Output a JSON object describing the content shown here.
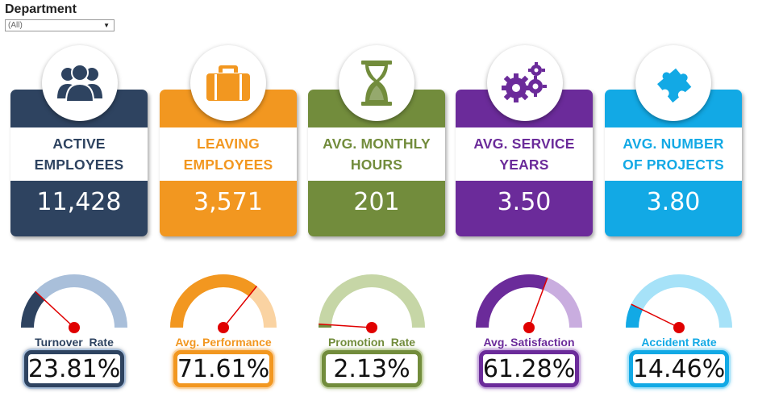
{
  "filter": {
    "title": "Department",
    "selected": "(All)"
  },
  "cards": [
    {
      "line1": "ACTIVE",
      "line2": "EMPLOYEES",
      "value": "11,428",
      "color": "#2e4360",
      "icon": "people-icon"
    },
    {
      "line1": "LEAVING",
      "line2": "EMPLOYEES",
      "value": "3,571",
      "color": "#f29720",
      "icon": "briefcase-icon"
    },
    {
      "line1": "AVG. MONTHLY",
      "line2": "HOURS",
      "value": "201",
      "color": "#728c3c",
      "icon": "hourglass-icon"
    },
    {
      "line1": "AVG. SERVICE",
      "line2": "YEARS",
      "value": "3.50",
      "color": "#6b2b9a",
      "icon": "gears-icon"
    },
    {
      "line1": "AVG. NUMBER",
      "line2": "OF PROJECTS",
      "value": "3.80",
      "color": "#12a9e5",
      "icon": "puzzle-icon"
    }
  ],
  "gauges": [
    {
      "label": "Turnover  Rate",
      "value": "23.81%",
      "fraction": 0.2381,
      "color": "#2e4360",
      "track": "#a9bfda"
    },
    {
      "label": "Avg. Performance",
      "value": "71.61%",
      "fraction": 0.7161,
      "color": "#f29720",
      "track": "#fad3a2"
    },
    {
      "label": "Promotion  Rate",
      "value": "2.13%",
      "fraction": 0.0213,
      "color": "#728c3c",
      "track": "#c6d6a6"
    },
    {
      "label": "Avg. Satisfaction",
      "value": "61.28%",
      "fraction": 0.6128,
      "color": "#6b2b9a",
      "track": "#c9addf"
    },
    {
      "label": "Accident Rate",
      "value": "14.46%",
      "fraction": 0.1446,
      "color": "#12a9e5",
      "track": "#a6e2f8"
    }
  ]
}
